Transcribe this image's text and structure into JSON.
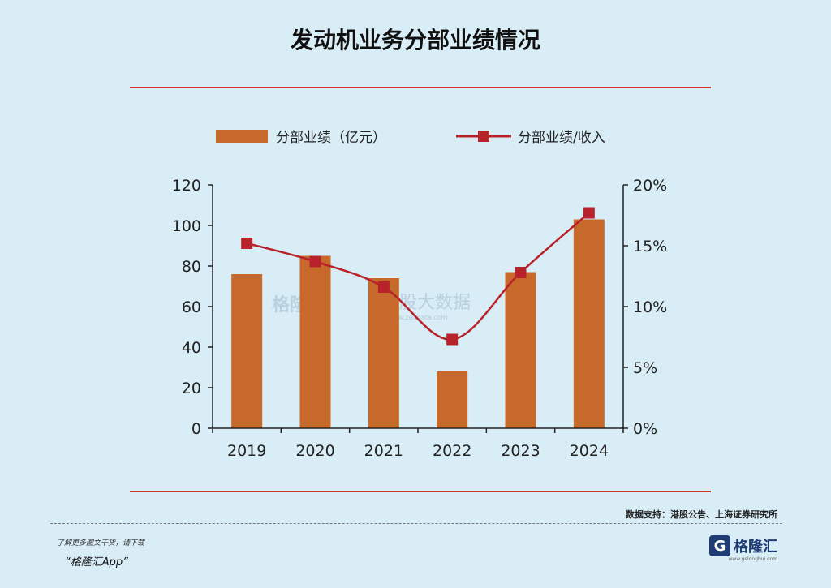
{
  "page": {
    "title": "发动机业务分部业绩情况",
    "source": "数据支持：港股公告、上海证券研究所",
    "footer_text": "了解更多图文干货，请下载",
    "footer_app": "“格隆汇App”",
    "brand_name": "格隆汇",
    "brand_url": "www.gelonghui.com",
    "watermark_left": "格隆汇",
    "watermark_right": "智股大数据",
    "watermark_url": "www.zgudata.com"
  },
  "colors": {
    "bar": "#c8692c",
    "line": "#b8222a",
    "axis": "#222222",
    "rule": "#d8312c"
  },
  "chart_data": {
    "type": "bar",
    "categories": [
      "2019",
      "2020",
      "2021",
      "2022",
      "2023",
      "2024"
    ],
    "series": [
      {
        "name": "分部业绩（亿元）",
        "kind": "bar",
        "axis": "left",
        "values": [
          76,
          85,
          74,
          28,
          77,
          103
        ]
      },
      {
        "name": "分部业绩/收入",
        "kind": "line",
        "axis": "right",
        "values": [
          15.2,
          13.7,
          11.6,
          7.3,
          12.8,
          17.7
        ]
      }
    ],
    "y_left": {
      "min": 0,
      "max": 120,
      "ticks": [
        "0",
        "20",
        "40",
        "60",
        "80",
        "100",
        "120"
      ]
    },
    "y_right": {
      "min": 0,
      "max": 20,
      "ticks": [
        "0%",
        "5%",
        "10%",
        "15%",
        "20%"
      ]
    },
    "legend_position": "top-center"
  }
}
